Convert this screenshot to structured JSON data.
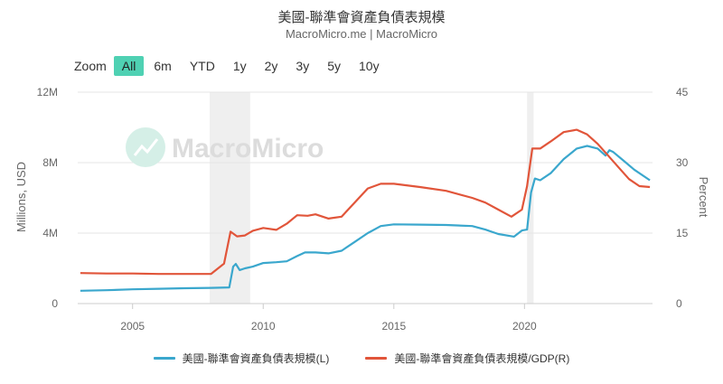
{
  "title": "美國-聯準會資產負債表規模",
  "subtitle": "MacroMicro.me | MacroMicro",
  "watermark": "MacroMicro",
  "zoom": {
    "label": "Zoom",
    "buttons": [
      "All",
      "6m",
      "YTD",
      "1y",
      "2y",
      "3y",
      "5y",
      "10y"
    ],
    "active": "All"
  },
  "colors": {
    "left_series": "#3aa7cd",
    "right_series": "#e1553a",
    "shade": "#efefef",
    "grid": "#e6e6e6",
    "accent": "#4fd1b3"
  },
  "chart_data": {
    "type": "line",
    "title": "美國-聯準會資產負債表規模",
    "subtitle": "MacroMicro.me | MacroMicro",
    "x_ticks": [
      "2005",
      "2010",
      "2015",
      "2020"
    ],
    "left_axis": {
      "label": "Millions, USD",
      "range": [
        0,
        12000000
      ],
      "ticks": [
        "0",
        "4M",
        "8M",
        "12M"
      ],
      "tick_values": [
        0,
        4000000,
        8000000,
        12000000
      ]
    },
    "right_axis": {
      "label": "Percent",
      "range": [
        0,
        45
      ],
      "ticks": [
        "0",
        "15",
        "30",
        "45"
      ],
      "tick_values": [
        0,
        15,
        30,
        45
      ]
    },
    "x_range": [
      2002.9,
      2024.9
    ],
    "grid": true,
    "legend_position": "bottom",
    "shaded_periods": [
      [
        2007.95,
        2009.5
      ],
      [
        2020.1,
        2020.35
      ]
    ],
    "series": [
      {
        "name": "美國-聯準會資產負債表規模(L)",
        "axis": "left",
        "points": [
          [
            2003.0,
            730000
          ],
          [
            2004.0,
            760000
          ],
          [
            2005.0,
            810000
          ],
          [
            2006.0,
            840000
          ],
          [
            2007.0,
            870000
          ],
          [
            2008.0,
            890000
          ],
          [
            2008.7,
            920000
          ],
          [
            2008.85,
            2100000
          ],
          [
            2008.95,
            2250000
          ],
          [
            2009.1,
            1900000
          ],
          [
            2009.3,
            2000000
          ],
          [
            2009.6,
            2100000
          ],
          [
            2010.0,
            2300000
          ],
          [
            2010.5,
            2350000
          ],
          [
            2010.9,
            2400000
          ],
          [
            2011.3,
            2700000
          ],
          [
            2011.6,
            2900000
          ],
          [
            2012.0,
            2900000
          ],
          [
            2012.5,
            2850000
          ],
          [
            2013.0,
            3000000
          ],
          [
            2013.5,
            3500000
          ],
          [
            2014.0,
            4000000
          ],
          [
            2014.5,
            4400000
          ],
          [
            2015.0,
            4500000
          ],
          [
            2016.0,
            4480000
          ],
          [
            2017.0,
            4460000
          ],
          [
            2018.0,
            4400000
          ],
          [
            2018.5,
            4200000
          ],
          [
            2019.0,
            3950000
          ],
          [
            2019.6,
            3800000
          ],
          [
            2019.9,
            4150000
          ],
          [
            2020.1,
            4200000
          ],
          [
            2020.25,
            6300000
          ],
          [
            2020.4,
            7100000
          ],
          [
            2020.6,
            7000000
          ],
          [
            2021.0,
            7400000
          ],
          [
            2021.5,
            8200000
          ],
          [
            2022.0,
            8800000
          ],
          [
            2022.4,
            8950000
          ],
          [
            2022.8,
            8800000
          ],
          [
            2023.1,
            8400000
          ],
          [
            2023.25,
            8700000
          ],
          [
            2023.4,
            8600000
          ],
          [
            2023.8,
            8100000
          ],
          [
            2024.2,
            7600000
          ],
          [
            2024.8,
            7000000
          ]
        ]
      },
      {
        "name": "美國-聯準會資產負債表規模/GDP(R)",
        "axis": "right",
        "points": [
          [
            2003.0,
            6.5
          ],
          [
            2004.0,
            6.4
          ],
          [
            2005.0,
            6.4
          ],
          [
            2006.0,
            6.3
          ],
          [
            2007.0,
            6.3
          ],
          [
            2008.0,
            6.3
          ],
          [
            2008.5,
            8.5
          ],
          [
            2008.75,
            15.3
          ],
          [
            2009.0,
            14.3
          ],
          [
            2009.3,
            14.5
          ],
          [
            2009.6,
            15.5
          ],
          [
            2010.0,
            16.1
          ],
          [
            2010.5,
            15.7
          ],
          [
            2010.9,
            17.0
          ],
          [
            2011.3,
            18.8
          ],
          [
            2011.7,
            18.7
          ],
          [
            2012.0,
            19.0
          ],
          [
            2012.5,
            18.1
          ],
          [
            2013.0,
            18.5
          ],
          [
            2013.5,
            21.5
          ],
          [
            2014.0,
            24.5
          ],
          [
            2014.5,
            25.5
          ],
          [
            2015.0,
            25.5
          ],
          [
            2016.0,
            24.8
          ],
          [
            2017.0,
            24.0
          ],
          [
            2018.0,
            22.5
          ],
          [
            2018.5,
            21.5
          ],
          [
            2019.0,
            20.0
          ],
          [
            2019.5,
            18.5
          ],
          [
            2019.9,
            20.0
          ],
          [
            2020.1,
            25.0
          ],
          [
            2020.3,
            33.0
          ],
          [
            2020.6,
            33.0
          ],
          [
            2021.0,
            34.5
          ],
          [
            2021.5,
            36.5
          ],
          [
            2022.0,
            37.0
          ],
          [
            2022.4,
            36.0
          ],
          [
            2022.8,
            34.0
          ],
          [
            2023.2,
            31.5
          ],
          [
            2023.6,
            29.0
          ],
          [
            2024.0,
            26.5
          ],
          [
            2024.4,
            25.0
          ],
          [
            2024.8,
            24.8
          ]
        ]
      }
    ]
  },
  "legend": [
    {
      "label": "美國-聯準會資產負債表規模(L)",
      "color": "#3aa7cd"
    },
    {
      "label": "美國-聯準會資產負債表規模/GDP(R)",
      "color": "#e1553a"
    }
  ]
}
